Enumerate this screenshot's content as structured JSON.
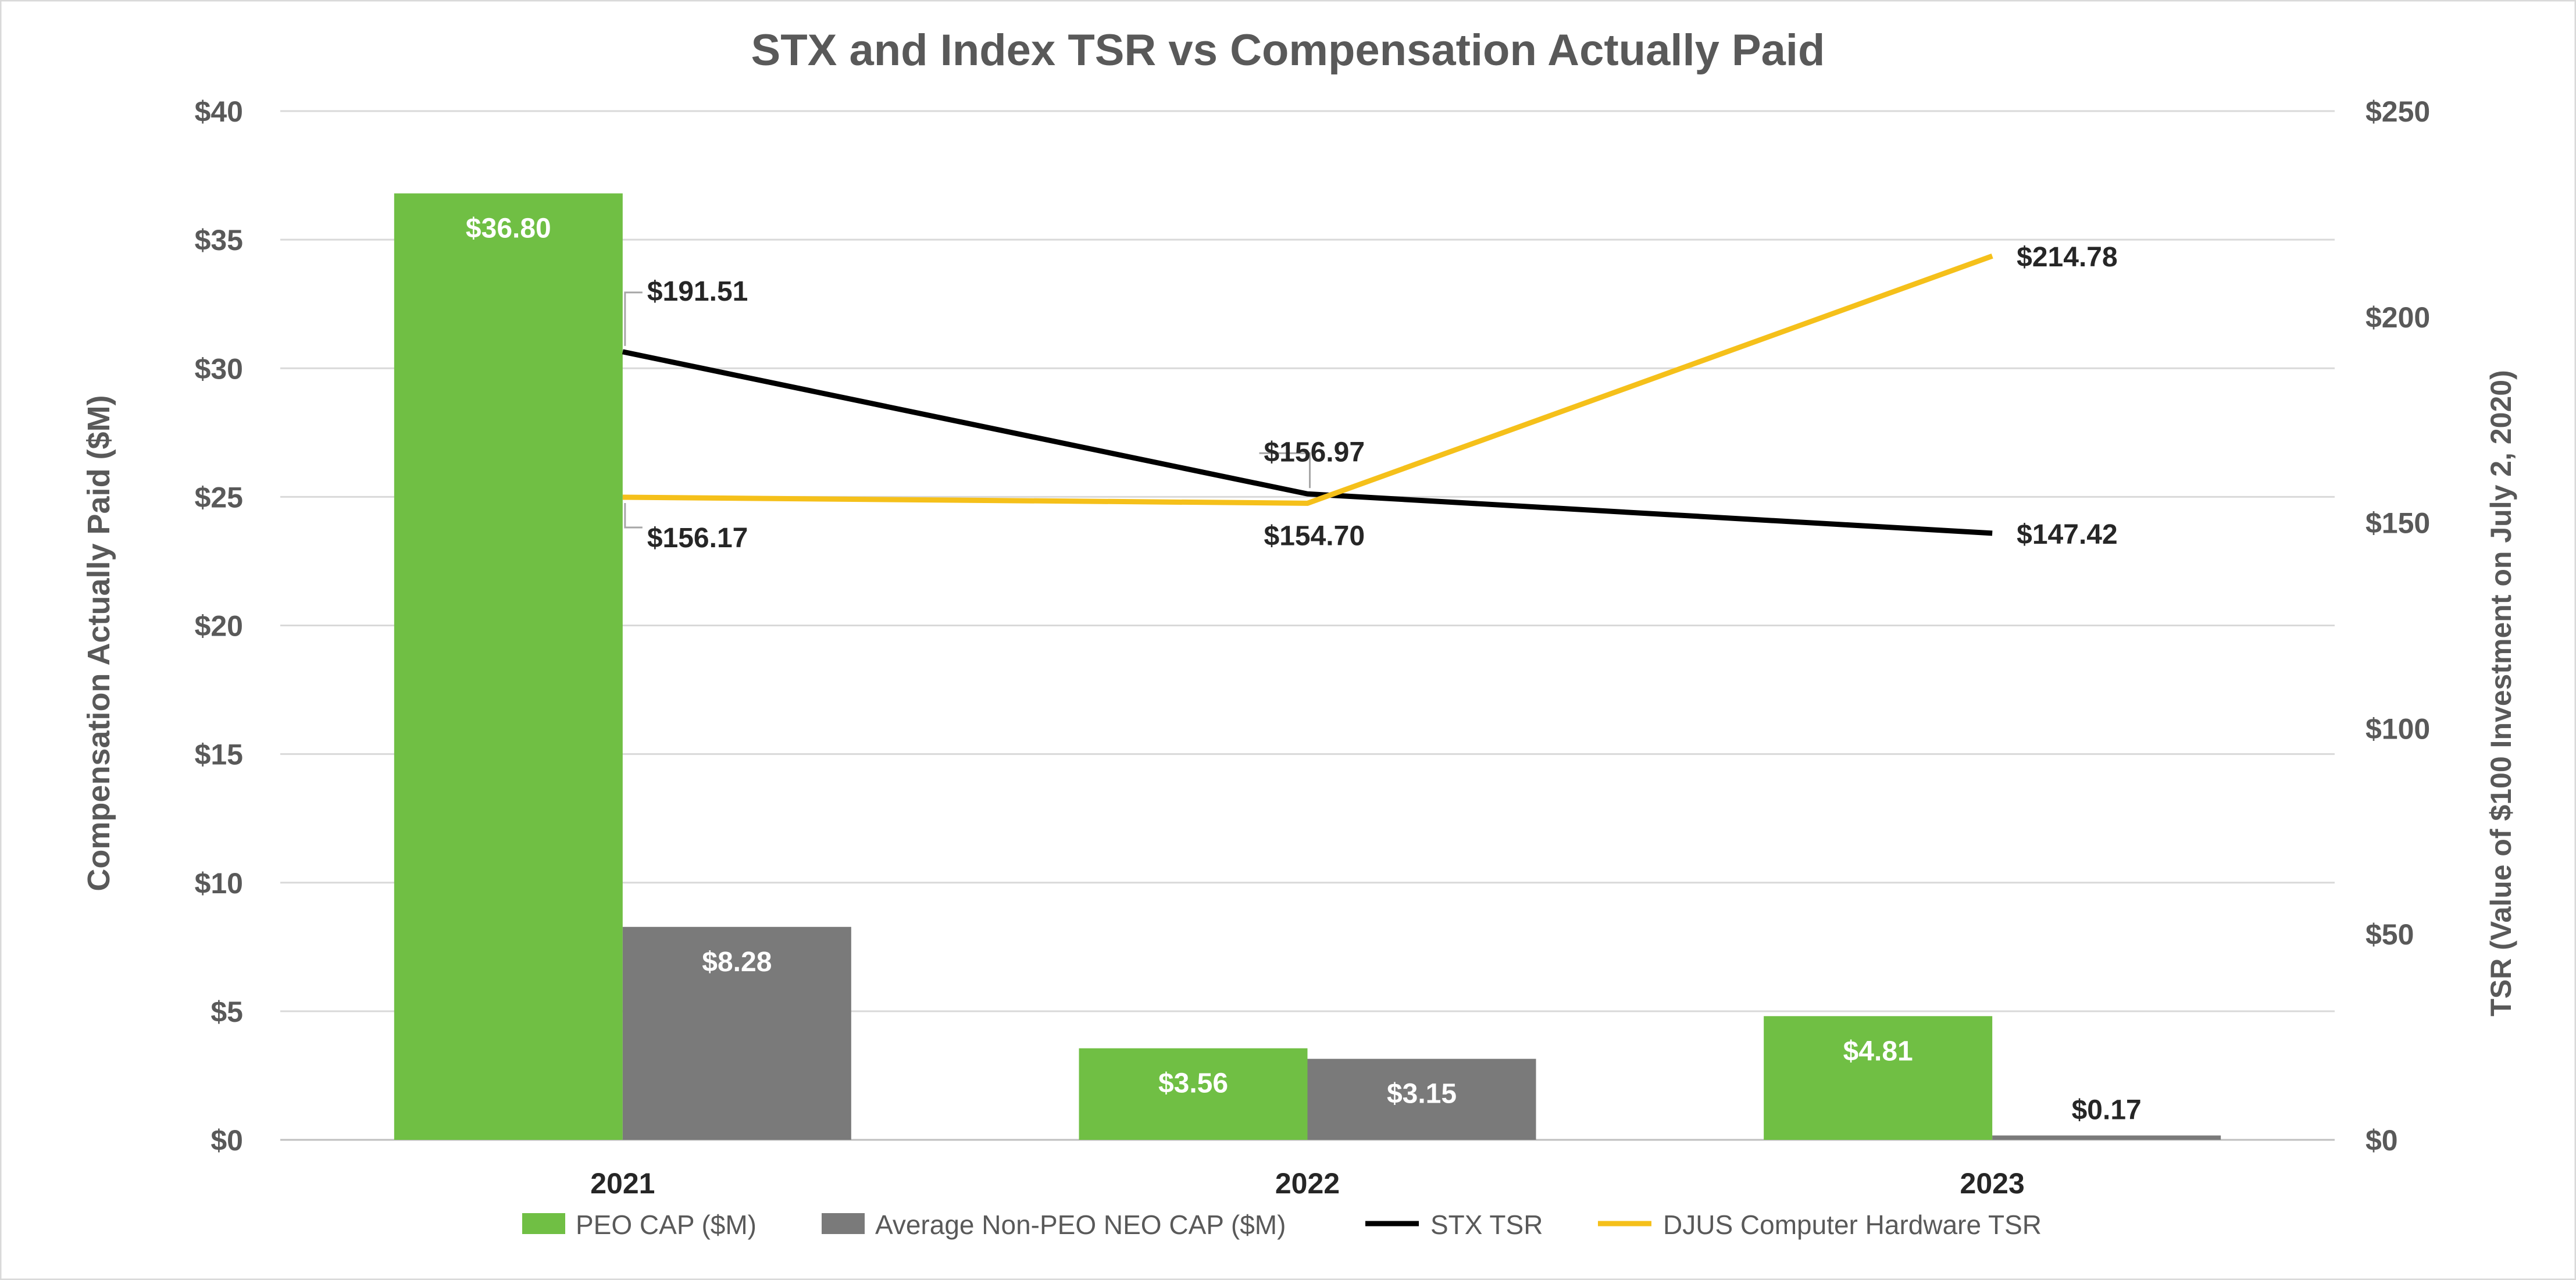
{
  "chart_data": {
    "type": "bar",
    "title": "STX and Index TSR vs Compensation Actually Paid",
    "categories": [
      "2021",
      "2022",
      "2023"
    ],
    "ylabel": "Compensation Actually Paid ($M)",
    "y2label": "TSR (Value of $100 Investment on July 2, 2020)",
    "ylim": [
      0,
      40
    ],
    "y2lim": [
      0,
      250
    ],
    "yticks": [
      "$0",
      "$5",
      "$10",
      "$15",
      "$20",
      "$25",
      "$30",
      "$35",
      "$40"
    ],
    "y2ticks": [
      "$0",
      "$50",
      "$100",
      "$150",
      "$200",
      "$250"
    ],
    "grid": true,
    "legend_position": "bottom",
    "series": [
      {
        "name": "PEO CAP ($M)",
        "kind": "bar",
        "axis": "left",
        "color": "#70BF44",
        "values": [
          36.8,
          3.56,
          4.81
        ],
        "labels": [
          "$36.80",
          "$3.56",
          "$4.81"
        ]
      },
      {
        "name": "Average Non-PEO NEO CAP ($M)",
        "kind": "bar",
        "axis": "left",
        "color": "#7A7A7A",
        "values": [
          8.28,
          3.15,
          0.17
        ],
        "labels": [
          "$8.28",
          "$3.15",
          "$0.17"
        ]
      },
      {
        "name": "STX TSR",
        "kind": "line",
        "axis": "right",
        "color": "#000000",
        "values": [
          191.51,
          156.97,
          147.42
        ],
        "labels": [
          "$191.51",
          "$156.97",
          "$147.42"
        ]
      },
      {
        "name": "DJUS Computer Hardware TSR",
        "kind": "line",
        "axis": "right",
        "color": "#F5C01A",
        "values": [
          156.17,
          154.7,
          214.78
        ],
        "labels": [
          "$156.17",
          "$154.70",
          "$214.78"
        ]
      }
    ]
  }
}
